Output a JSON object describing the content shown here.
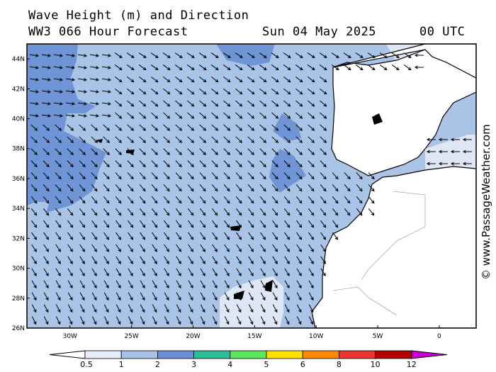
{
  "header": {
    "title": "Wave Height (m) and Direction",
    "model": "WW3 066 Hour Forecast",
    "date": "Sun 04 May 2025",
    "time": "00 UTC"
  },
  "credit": "© www.PassageWeather.com",
  "colors": {
    "land": "#ffffff",
    "sea_bands": [
      "#dfe7f6",
      "#aac4e8",
      "#6f95d6"
    ],
    "arrow": "#000000"
  },
  "axes": {
    "lat_labels": [
      "44N",
      "42N",
      "40N",
      "38N",
      "36N",
      "34N",
      "32N",
      "30N",
      "28N",
      "26N"
    ],
    "lon_labels": [
      "30W",
      "25W",
      "20W",
      "15W",
      "10W",
      "5W",
      "0"
    ],
    "lat_range": [
      26,
      45
    ],
    "lon_range": [
      -33.5,
      3
    ]
  },
  "colorbar": {
    "colors": [
      "#e6ecf8",
      "#a9c1e6",
      "#6c8fd3",
      "#2ebf9a",
      "#5ce65c",
      "#ffe000",
      "#ff8800",
      "#ee3333",
      "#b30000",
      "#cc00cc"
    ],
    "labels": [
      "0.5",
      "1",
      "2",
      "3",
      "4",
      "5",
      "6",
      "8",
      "10",
      "12"
    ]
  }
}
